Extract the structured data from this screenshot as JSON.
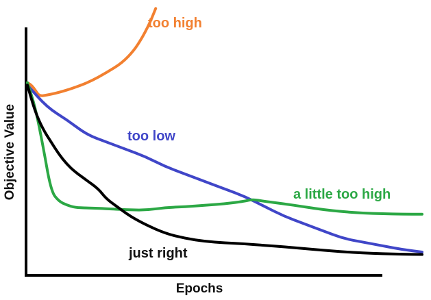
{
  "chart_data": {
    "type": "line",
    "title": "",
    "xlabel": "Epochs",
    "ylabel": "Objective Value",
    "grid": false,
    "legend": "inline labels",
    "xlim": [
      0,
      100
    ],
    "ylim": [
      0,
      100
    ],
    "series": [
      {
        "name": "too high",
        "color": "#f28030",
        "x": [
          0,
          1,
          2,
          3,
          5,
          8,
          12,
          16,
          20,
          24,
          27,
          29,
          30.5,
          31.5,
          32.5
        ],
        "y": [
          76,
          75,
          73,
          70.5,
          71,
          72,
          74,
          76.5,
          80,
          84,
          89,
          94,
          98.5,
          102,
          106
        ]
      },
      {
        "name": "too low",
        "color": "#4046c8",
        "x": [
          0,
          5,
          10,
          15,
          20,
          25,
          30,
          35,
          40,
          45,
          50,
          55,
          60,
          65,
          70,
          75,
          80,
          85,
          90,
          95,
          100
        ],
        "y": [
          75,
          66,
          61,
          55,
          52,
          49,
          46,
          42,
          39,
          36,
          33,
          30,
          26,
          22,
          19,
          16,
          13,
          11.5,
          10,
          8.5,
          7.5
        ]
      },
      {
        "name": "a little too high",
        "color": "#2ca845",
        "x": [
          0,
          2,
          4,
          6,
          8,
          10,
          12,
          15,
          18,
          20,
          25,
          30,
          35,
          40,
          45,
          50,
          55,
          57,
          60,
          65,
          70,
          75,
          80,
          85,
          90,
          95,
          100
        ],
        "y": [
          76,
          66,
          50,
          32,
          28,
          26.5,
          25.5,
          25.3,
          25.2,
          25.0,
          24.6,
          24.4,
          25.5,
          25.8,
          26.4,
          27.0,
          28.0,
          28.8,
          28.0,
          27.0,
          25.8,
          24.6,
          23.8,
          23.2,
          23.0,
          22.8,
          22.8
        ]
      },
      {
        "name": "just right",
        "color": "#000000",
        "x": [
          0,
          2,
          4,
          6,
          8,
          10,
          12,
          15,
          18,
          20,
          23,
          26,
          30,
          35,
          40,
          45,
          50,
          55,
          60,
          65,
          70,
          75,
          80,
          85,
          90,
          95,
          100
        ],
        "y": [
          75,
          64,
          57,
          52,
          47,
          43,
          40,
          36.5,
          33,
          29,
          25.5,
          22,
          18.5,
          15,
          13,
          11.8,
          11.2,
          10.8,
          10.2,
          9.6,
          8.9,
          8.2,
          7.6,
          7.1,
          6.8,
          6.6,
          6.5
        ]
      }
    ],
    "labels": [
      {
        "text": "too high",
        "series": 0,
        "color": "#f28030"
      },
      {
        "text": "too low",
        "series": 1,
        "color": "#4046c8"
      },
      {
        "text": "a little too high",
        "series": 2,
        "color": "#2ca845"
      },
      {
        "text": "just right",
        "series": 3,
        "color": "#111111"
      }
    ]
  }
}
